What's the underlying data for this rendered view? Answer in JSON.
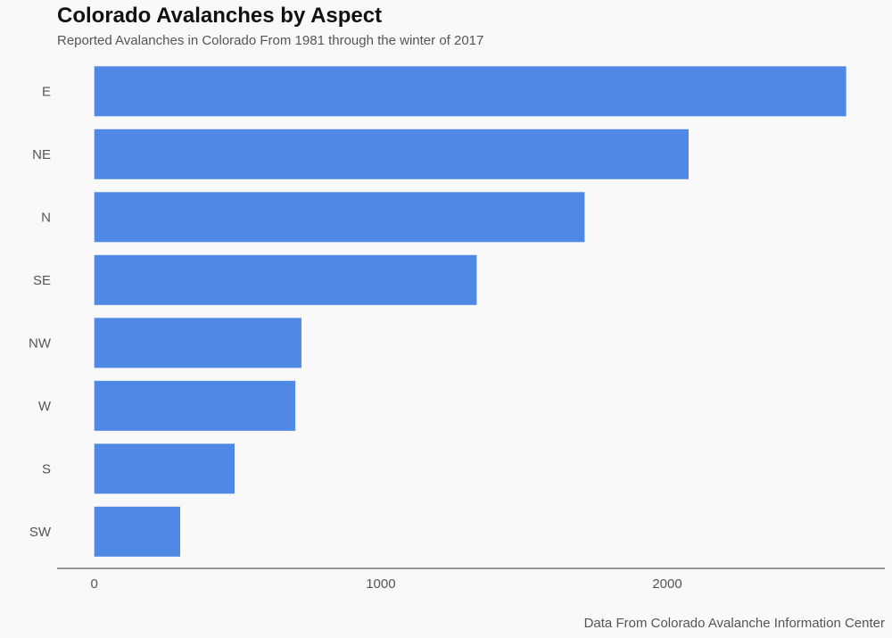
{
  "chart_data": {
    "type": "bar",
    "orientation": "horizontal",
    "title": "Colorado Avalanches by Aspect",
    "subtitle": "Reported Avalanches in Colorado From 1981 through the winter of 2017",
    "caption": "Data From Colorado Avalanche Information Center",
    "xlabel": "",
    "ylabel": "",
    "categories": [
      "E",
      "NE",
      "N",
      "SE",
      "NW",
      "W",
      "S",
      "SW"
    ],
    "values": [
      2625,
      2075,
      1712,
      1335,
      723,
      702,
      490,
      300
    ],
    "xlim": [
      -130,
      2760
    ],
    "xticks": [
      0,
      1000,
      2000
    ],
    "xtick_labels": [
      "0",
      "1000",
      "2000"
    ],
    "grid": false,
    "legend": "none",
    "colors": {
      "bar": "#5088e5",
      "background": "#f9f9f9",
      "axis": "#333333",
      "text": "#555555"
    }
  }
}
